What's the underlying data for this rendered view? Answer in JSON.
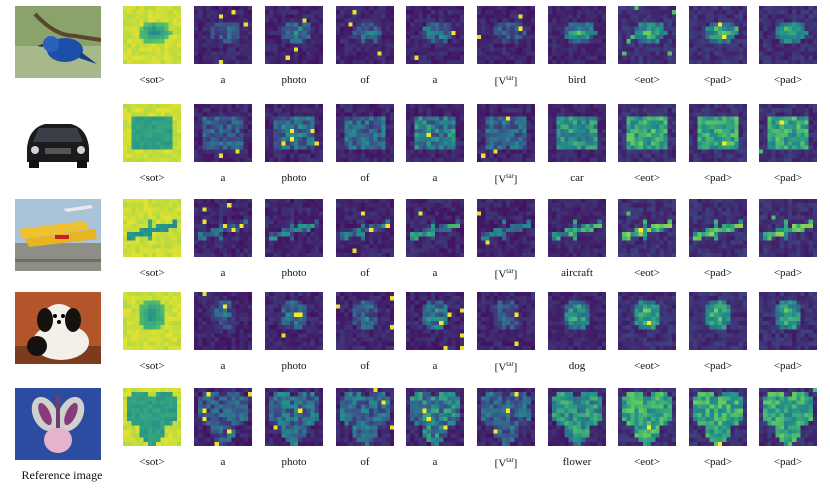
{
  "caption": "Reference image",
  "tokens_prefix": [
    "<sot>",
    "a",
    "photo",
    "of",
    "a"
  ],
  "token_vtar": {
    "base": "[V",
    "sup": "tar",
    "close": "]"
  },
  "tokens_suffix": [
    "<eot>",
    "<pad>",
    "<pad>"
  ],
  "rows": [
    {
      "name": "bird",
      "class_label": "bird"
    },
    {
      "name": "car",
      "class_label": "car"
    },
    {
      "name": "aircraft",
      "class_label": "aircraft"
    },
    {
      "name": "dog",
      "class_label": "dog"
    },
    {
      "name": "flower",
      "class_label": "flower"
    }
  ],
  "colors": {
    "viridis_dark": "#3b0f70",
    "viridis_mid": "#31688e",
    "viridis_green": "#35b779",
    "viridis_yellow": "#fde725"
  }
}
